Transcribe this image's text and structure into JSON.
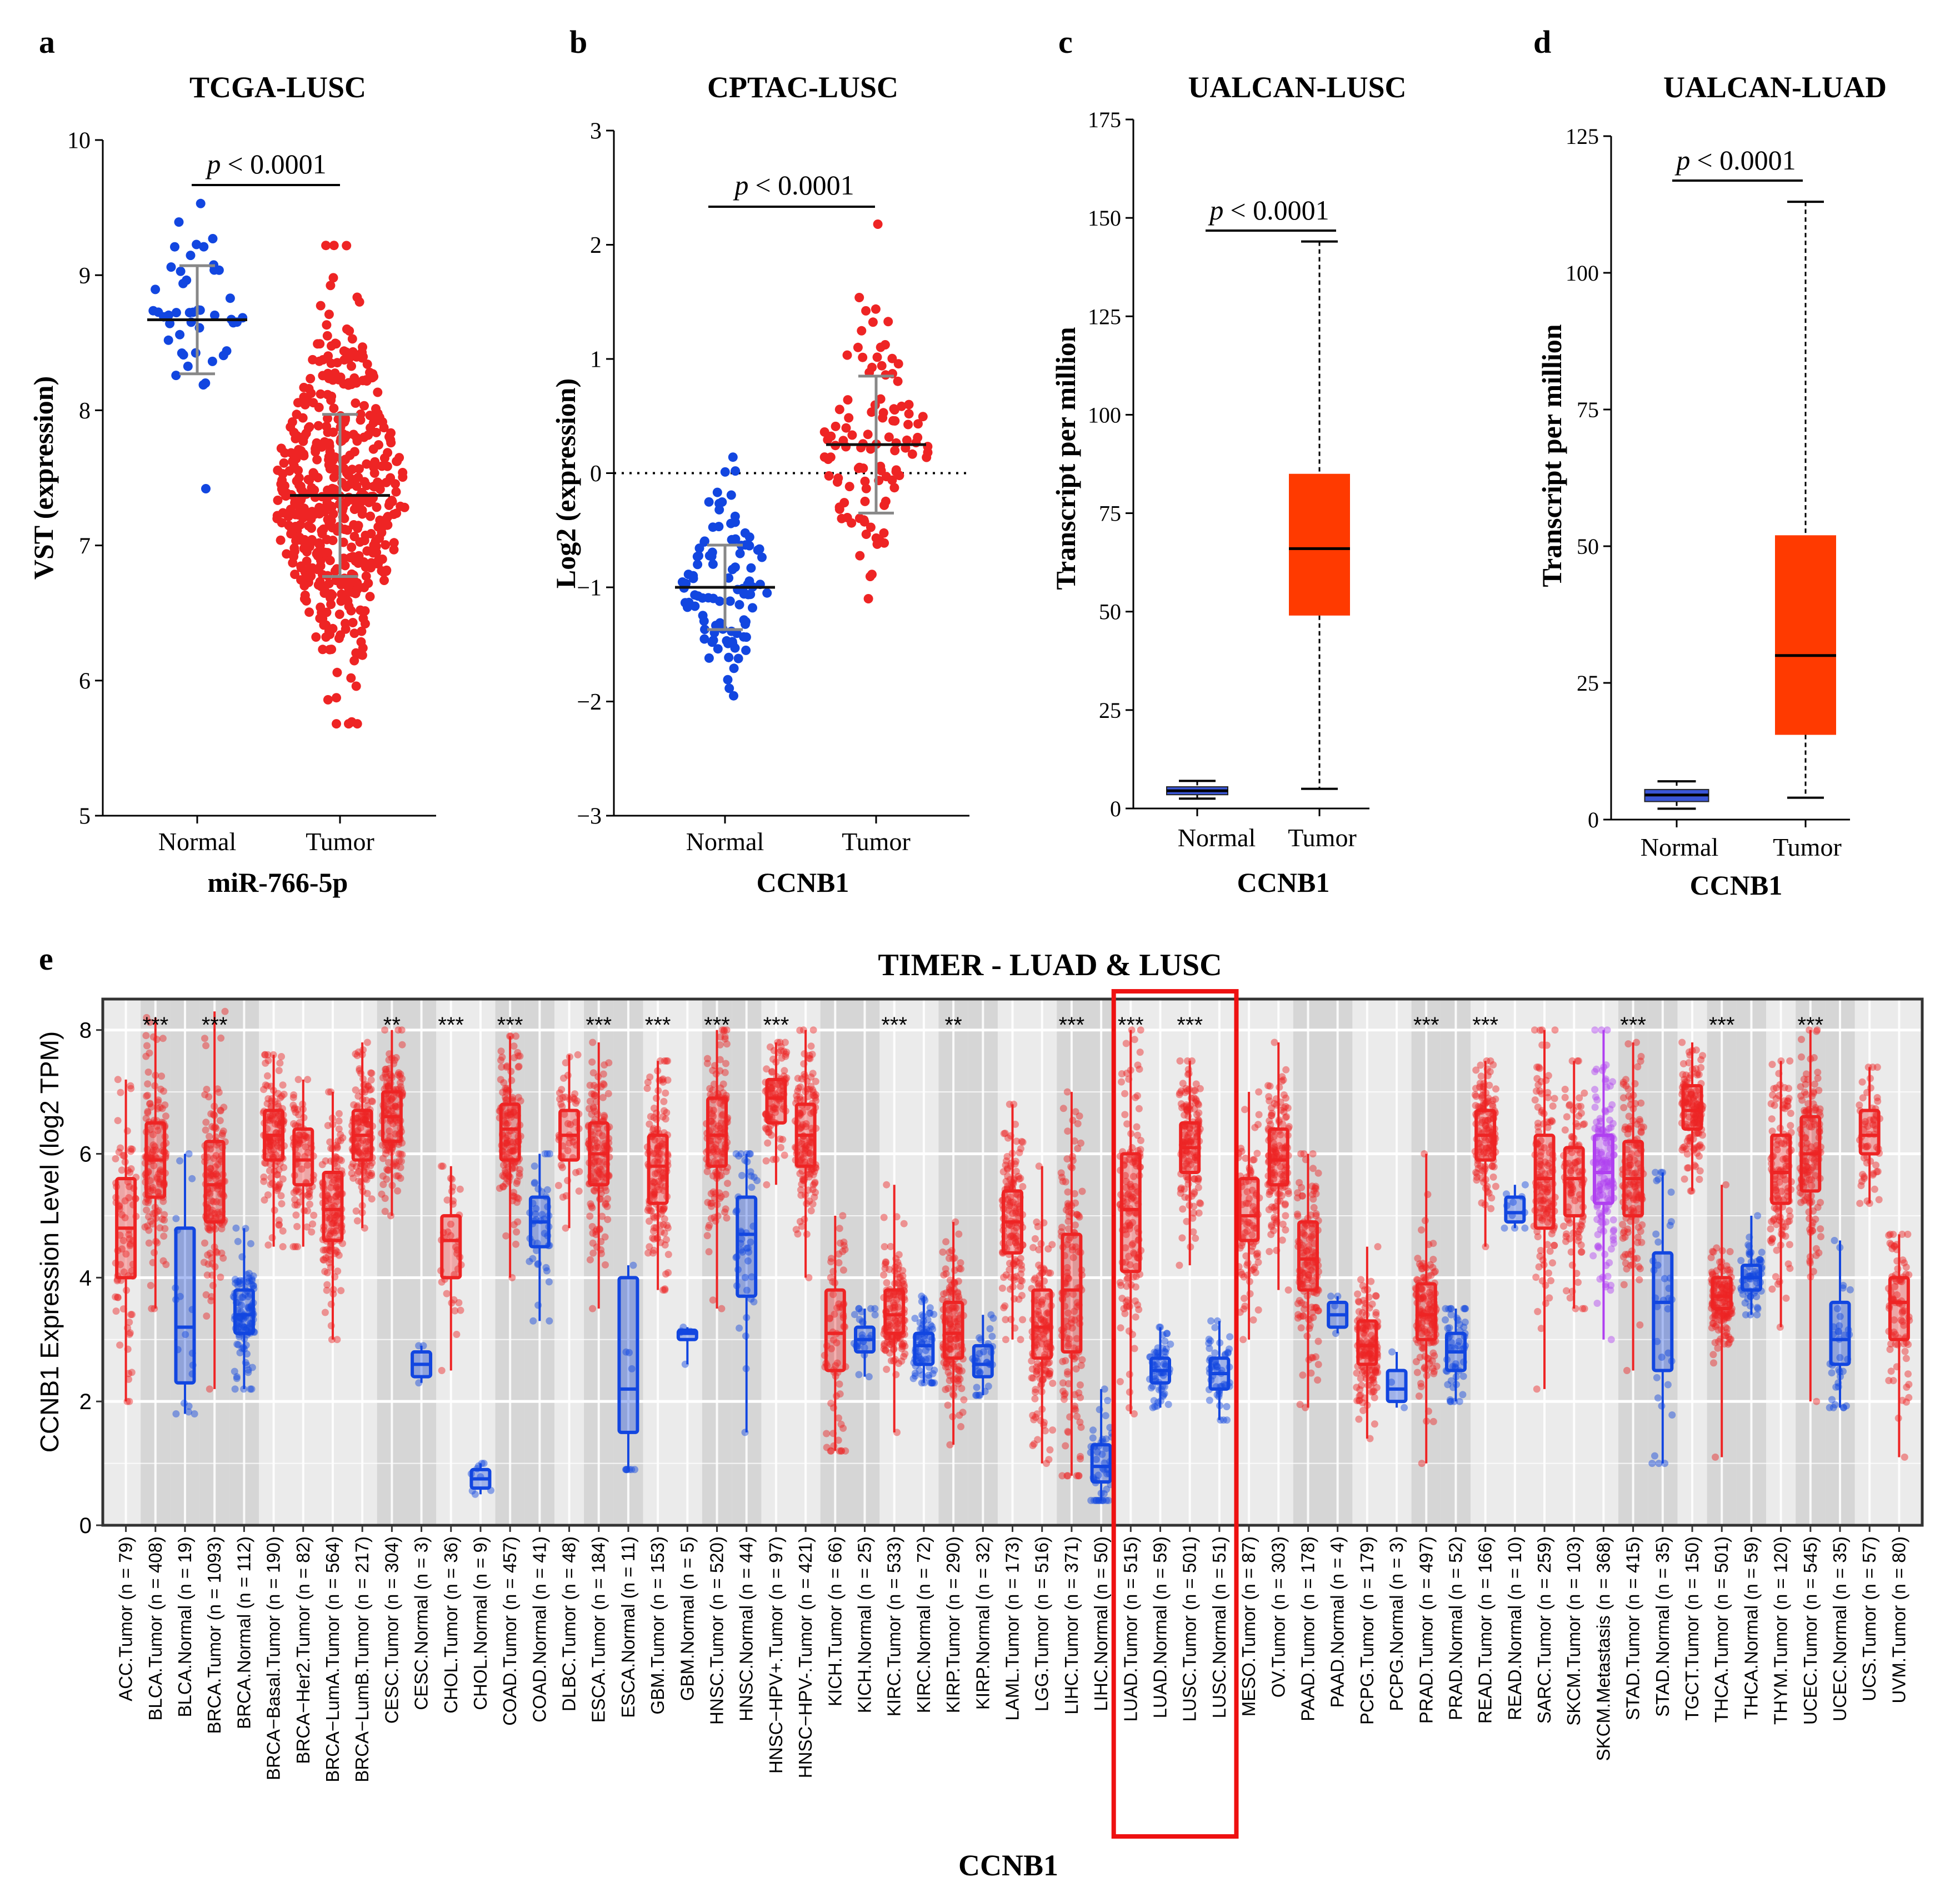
{
  "colors": {
    "normal": "#1246e0",
    "tumor": "#ee2424",
    "metastasis": "#b040f0",
    "ualcan_normal": "#3a56d8",
    "ualcan_tumor": "#ff3a00",
    "median_line": "#111111",
    "error_bar": "#888888",
    "timer_band": "#d6d6d6",
    "highlight_box": "#ee1111"
  },
  "chart_data": [
    {
      "panel": "a",
      "type": "scatter",
      "title": "TCGA-LUSC",
      "xlabel": "miR-766-5p",
      "ylabel": "VST (expression)",
      "ylim": [
        5,
        10
      ],
      "yticks": [
        5,
        6,
        7,
        8,
        9,
        10
      ],
      "ytick_labels": [
        "5",
        "6",
        "7",
        "8",
        "9",
        "10"
      ],
      "categories": [
        "Normal",
        "Tumor"
      ],
      "groups": [
        {
          "name": "Normal",
          "n": 46,
          "mean": 8.67,
          "sd": 0.4,
          "min": 7.42,
          "max": 9.53
        },
        {
          "name": "Tumor",
          "n": 520,
          "mean": 7.37,
          "sd": 0.6,
          "min": 5.68,
          "max": 9.22
        }
      ],
      "pvalue_text": "< 0.0001",
      "pvalue_prefix": "p"
    },
    {
      "panel": "b",
      "type": "scatter",
      "title": "CPTAC-LUSC",
      "xlabel": "CCNB1",
      "ylabel": "Log2 (expression)",
      "ylim": [
        -3,
        3
      ],
      "yticks": [
        -3,
        -2,
        -1,
        0,
        1,
        2,
        3
      ],
      "ytick_labels": [
        "−3",
        "−2",
        "−1",
        "0",
        "1",
        "2",
        "3"
      ],
      "reference_line": 0,
      "categories": [
        "Normal",
        "Tumor"
      ],
      "groups": [
        {
          "name": "Normal",
          "n": 99,
          "mean": -1.0,
          "sd": 0.37,
          "min": -1.95,
          "max": 0.14
        },
        {
          "name": "Tumor",
          "n": 108,
          "mean": 0.25,
          "sd": 0.6,
          "min": -1.1,
          "max": 2.18
        }
      ],
      "pvalue_text": "< 0.0001",
      "pvalue_prefix": "p"
    },
    {
      "panel": "c",
      "type": "box",
      "title": "UALCAN-LUSC",
      "xlabel": "CCNB1",
      "ylabel": "Transcript per million",
      "ylim": [
        0,
        175
      ],
      "yticks": [
        0,
        25,
        50,
        75,
        100,
        125,
        150,
        175
      ],
      "ytick_labels": [
        "0",
        "25",
        "50",
        "75",
        "100",
        "125",
        "150",
        "175"
      ],
      "categories": [
        "Normal",
        "Tumor"
      ],
      "boxes": [
        {
          "name": "Normal",
          "min": 2.5,
          "q1": 3.5,
          "median": 4.5,
          "q3": 5.5,
          "max": 7
        },
        {
          "name": "Tumor",
          "min": 5,
          "q1": 49,
          "median": 66,
          "q3": 85,
          "max": 144
        }
      ],
      "pvalue_text": "< 0.0001",
      "pvalue_prefix": "p"
    },
    {
      "panel": "d",
      "type": "box",
      "title": "UALCAN-LUAD",
      "xlabel": "CCNB1",
      "ylabel": "Transcript per million",
      "ylim": [
        0,
        125
      ],
      "yticks": [
        0,
        25,
        50,
        75,
        100,
        125
      ],
      "ytick_labels": [
        "0",
        "25",
        "50",
        "75",
        "100",
        "125"
      ],
      "categories": [
        "Normal",
        "Tumor"
      ],
      "boxes": [
        {
          "name": "Normal",
          "min": 2,
          "q1": 3.3,
          "median": 4.5,
          "q3": 5.5,
          "max": 7
        },
        {
          "name": "Tumor",
          "min": 4,
          "q1": 15.5,
          "median": 30,
          "q3": 52,
          "max": 113
        }
      ],
      "pvalue_text": "< 0.0001",
      "pvalue_prefix": "p"
    },
    {
      "panel": "e",
      "type": "box",
      "title": "TIMER - LUAD & LUSC",
      "xlabel": "CCNB1",
      "ylabel": "CCNB1 Expression Level (log2 TPM)",
      "ylim": [
        0,
        8.5
      ],
      "yticks": [
        0,
        2,
        4,
        6,
        8
      ],
      "ytick_labels": [
        "0",
        "2",
        "4",
        "6",
        "8"
      ],
      "highlight": [
        "LUAD.Tumor (n = 515)",
        "LUAD.Normal (n = 59)",
        "LUSC.Tumor (n = 501)",
        "LUSC.Normal (n = 51)"
      ],
      "categories": [
        {
          "label": "ACC.Tumor (n = 79)",
          "kind": "tumor",
          "q1": 4.0,
          "median": 4.8,
          "q3": 5.6,
          "min": 2.0,
          "max": 7.2,
          "band": false,
          "sig": ""
        },
        {
          "label": "BLCA.Tumor (n = 408)",
          "kind": "tumor",
          "q1": 5.3,
          "median": 5.9,
          "q3": 6.5,
          "min": 3.5,
          "max": 8.2,
          "band": true,
          "sig": "***"
        },
        {
          "label": "BLCA.Normal (n = 19)",
          "kind": "normal",
          "q1": 2.3,
          "median": 3.2,
          "q3": 4.8,
          "min": 1.8,
          "max": 6.0,
          "band": true,
          "sig": ""
        },
        {
          "label": "BRCA.Tumor (n = 1093)",
          "kind": "tumor",
          "q1": 4.9,
          "median": 5.5,
          "q3": 6.2,
          "min": 2.2,
          "max": 8.3,
          "band": true,
          "sig": "***"
        },
        {
          "label": "BRCA.Normal (n = 112)",
          "kind": "normal",
          "q1": 3.1,
          "median": 3.4,
          "q3": 3.8,
          "min": 2.2,
          "max": 4.8,
          "band": true,
          "sig": ""
        },
        {
          "label": "BRCA−Basal.Tumor (n = 190)",
          "kind": "tumor",
          "q1": 5.9,
          "median": 6.3,
          "q3": 6.7,
          "min": 4.5,
          "max": 7.6,
          "band": false,
          "sig": ""
        },
        {
          "label": "BRCA−Her2.Tumor (n = 82)",
          "kind": "tumor",
          "q1": 5.5,
          "median": 5.9,
          "q3": 6.4,
          "min": 4.5,
          "max": 7.2,
          "band": false,
          "sig": ""
        },
        {
          "label": "BRCA−LumA.Tumor (n = 564)",
          "kind": "tumor",
          "q1": 4.6,
          "median": 5.1,
          "q3": 5.7,
          "min": 3.0,
          "max": 7.0,
          "band": false,
          "sig": ""
        },
        {
          "label": "BRCA−LumB.Tumor (n = 217)",
          "kind": "tumor",
          "q1": 5.9,
          "median": 6.3,
          "q3": 6.7,
          "min": 4.8,
          "max": 7.8,
          "band": false,
          "sig": ""
        },
        {
          "label": "CESC.Tumor (n = 304)",
          "kind": "tumor",
          "q1": 6.2,
          "median": 6.6,
          "q3": 7.0,
          "min": 5.0,
          "max": 8.0,
          "band": true,
          "sig": "**"
        },
        {
          "label": "CESC.Normal (n = 3)",
          "kind": "normal",
          "q1": 2.4,
          "median": 2.6,
          "q3": 2.8,
          "min": 2.3,
          "max": 2.9,
          "band": true,
          "sig": ""
        },
        {
          "label": "CHOL.Tumor (n = 36)",
          "kind": "tumor",
          "q1": 4.0,
          "median": 4.6,
          "q3": 5.0,
          "min": 2.5,
          "max": 5.8,
          "band": false,
          "sig": "***"
        },
        {
          "label": "CHOL.Normal (n = 9)",
          "kind": "normal",
          "q1": 0.6,
          "median": 0.75,
          "q3": 0.9,
          "min": 0.5,
          "max": 1.0,
          "band": false,
          "sig": ""
        },
        {
          "label": "COAD.Tumor (n = 457)",
          "kind": "tumor",
          "q1": 5.9,
          "median": 6.4,
          "q3": 6.8,
          "min": 4.0,
          "max": 7.9,
          "band": true,
          "sig": "***"
        },
        {
          "label": "COAD.Normal (n = 41)",
          "kind": "normal",
          "q1": 4.5,
          "median": 4.9,
          "q3": 5.3,
          "min": 3.3,
          "max": 6.0,
          "band": true,
          "sig": ""
        },
        {
          "label": "DLBC.Tumor (n = 48)",
          "kind": "tumor",
          "q1": 5.9,
          "median": 6.3,
          "q3": 6.7,
          "min": 4.8,
          "max": 7.6,
          "band": false,
          "sig": ""
        },
        {
          "label": "ESCA.Tumor (n = 184)",
          "kind": "tumor",
          "q1": 5.5,
          "median": 6.0,
          "q3": 6.5,
          "min": 3.5,
          "max": 7.8,
          "band": true,
          "sig": "***"
        },
        {
          "label": "ESCA.Normal (n = 11)",
          "kind": "normal",
          "q1": 1.5,
          "median": 2.2,
          "q3": 4.0,
          "min": 0.9,
          "max": 4.2,
          "band": true,
          "sig": ""
        },
        {
          "label": "GBM.Tumor (n = 153)",
          "kind": "tumor",
          "q1": 5.2,
          "median": 5.8,
          "q3": 6.3,
          "min": 3.8,
          "max": 7.5,
          "band": false,
          "sig": "***"
        },
        {
          "label": "GBM.Normal (n = 5)",
          "kind": "normal",
          "q1": 3.0,
          "median": 3.1,
          "q3": 3.15,
          "min": 2.6,
          "max": 3.2,
          "band": false,
          "sig": ""
        },
        {
          "label": "HNSC.Tumor (n = 520)",
          "kind": "tumor",
          "q1": 5.8,
          "median": 6.3,
          "q3": 6.9,
          "min": 3.5,
          "max": 8.0,
          "band": true,
          "sig": "***"
        },
        {
          "label": "HNSC.Normal (n = 44)",
          "kind": "normal",
          "q1": 3.7,
          "median": 4.7,
          "q3": 5.3,
          "min": 1.5,
          "max": 6.0,
          "band": true,
          "sig": ""
        },
        {
          "label": "HNSC−HPV+.Tumor (n = 97)",
          "kind": "tumor",
          "q1": 6.5,
          "median": 6.9,
          "q3": 7.2,
          "min": 5.5,
          "max": 7.8,
          "band": false,
          "sig": "***"
        },
        {
          "label": "HNSC−HPV-.Tumor (n = 421)",
          "kind": "tumor",
          "q1": 5.8,
          "median": 6.3,
          "q3": 6.8,
          "min": 4.0,
          "max": 8.0,
          "band": false,
          "sig": ""
        },
        {
          "label": "KICH.Tumor (n = 66)",
          "kind": "tumor",
          "q1": 2.5,
          "median": 3.1,
          "q3": 3.8,
          "min": 1.2,
          "max": 5.0,
          "band": true,
          "sig": ""
        },
        {
          "label": "KICH.Normal (n = 25)",
          "kind": "normal",
          "q1": 2.8,
          "median": 3.0,
          "q3": 3.2,
          "min": 2.4,
          "max": 3.5,
          "band": true,
          "sig": ""
        },
        {
          "label": "KIRC.Tumor (n = 533)",
          "kind": "tumor",
          "q1": 3.1,
          "median": 3.4,
          "q3": 3.8,
          "min": 1.5,
          "max": 5.5,
          "band": false,
          "sig": "***"
        },
        {
          "label": "KIRC.Normal (n = 72)",
          "kind": "normal",
          "q1": 2.6,
          "median": 2.9,
          "q3": 3.1,
          "min": 2.3,
          "max": 3.7,
          "band": false,
          "sig": ""
        },
        {
          "label": "KIRP.Tumor (n = 290)",
          "kind": "tumor",
          "q1": 2.7,
          "median": 3.1,
          "q3": 3.6,
          "min": 1.3,
          "max": 4.9,
          "band": true,
          "sig": "**"
        },
        {
          "label": "KIRP.Normal (n = 32)",
          "kind": "normal",
          "q1": 2.4,
          "median": 2.6,
          "q3": 2.9,
          "min": 2.1,
          "max": 3.4,
          "band": true,
          "sig": ""
        },
        {
          "label": "LAML.Tumor (n = 173)",
          "kind": "tumor",
          "q1": 4.4,
          "median": 4.9,
          "q3": 5.4,
          "min": 3.0,
          "max": 6.8,
          "band": false,
          "sig": ""
        },
        {
          "label": "LGG.Tumor (n = 516)",
          "kind": "tumor",
          "q1": 2.7,
          "median": 3.2,
          "q3": 3.8,
          "min": 1.0,
          "max": 5.8,
          "band": false,
          "sig": ""
        },
        {
          "label": "LIHC.Tumor (n = 371)",
          "kind": "tumor",
          "q1": 2.8,
          "median": 3.8,
          "q3": 4.7,
          "min": 0.8,
          "max": 7.0,
          "band": true,
          "sig": "***"
        },
        {
          "label": "LIHC.Normal (n = 50)",
          "kind": "normal",
          "q1": 0.7,
          "median": 0.95,
          "q3": 1.3,
          "min": 0.4,
          "max": 2.2,
          "band": true,
          "sig": ""
        },
        {
          "label": "LUAD.Tumor (n = 515)",
          "kind": "tumor",
          "q1": 4.1,
          "median": 5.1,
          "q3": 6.0,
          "min": 1.8,
          "max": 8.0,
          "band": false,
          "sig": "***"
        },
        {
          "label": "LUAD.Normal (n = 59)",
          "kind": "normal",
          "q1": 2.3,
          "median": 2.5,
          "q3": 2.7,
          "min": 1.9,
          "max": 3.2,
          "band": false,
          "sig": ""
        },
        {
          "label": "LUSC.Tumor (n = 501)",
          "kind": "tumor",
          "q1": 5.7,
          "median": 6.1,
          "q3": 6.5,
          "min": 4.2,
          "max": 7.5,
          "band": false,
          "sig": "***"
        },
        {
          "label": "LUSC.Normal (n = 51)",
          "kind": "normal",
          "q1": 2.2,
          "median": 2.45,
          "q3": 2.7,
          "min": 1.7,
          "max": 3.3,
          "band": false,
          "sig": ""
        },
        {
          "label": "MESO.Tumor (n = 87)",
          "kind": "tumor",
          "q1": 4.6,
          "median": 5.0,
          "q3": 5.6,
          "min": 3.0,
          "max": 7.0,
          "band": false,
          "sig": ""
        },
        {
          "label": "OV.Tumor (n = 303)",
          "kind": "tumor",
          "q1": 5.5,
          "median": 5.9,
          "q3": 6.4,
          "min": 3.8,
          "max": 7.8,
          "band": false,
          "sig": ""
        },
        {
          "label": "PAAD.Tumor (n = 178)",
          "kind": "tumor",
          "q1": 3.8,
          "median": 4.3,
          "q3": 4.9,
          "min": 1.9,
          "max": 6.0,
          "band": true,
          "sig": ""
        },
        {
          "label": "PAAD.Normal (n = 4)",
          "kind": "normal",
          "q1": 3.2,
          "median": 3.4,
          "q3": 3.6,
          "min": 3.1,
          "max": 3.7,
          "band": true,
          "sig": ""
        },
        {
          "label": "PCPG.Tumor (n = 179)",
          "kind": "tumor",
          "q1": 2.6,
          "median": 2.9,
          "q3": 3.3,
          "min": 1.4,
          "max": 4.5,
          "band": false,
          "sig": ""
        },
        {
          "label": "PCPG.Normal (n = 3)",
          "kind": "normal",
          "q1": 2.0,
          "median": 2.2,
          "q3": 2.5,
          "min": 1.9,
          "max": 2.8,
          "band": false,
          "sig": ""
        },
        {
          "label": "PRAD.Tumor (n = 497)",
          "kind": "tumor",
          "q1": 3.0,
          "median": 3.4,
          "q3": 3.9,
          "min": 1.0,
          "max": 6.0,
          "band": true,
          "sig": "***"
        },
        {
          "label": "PRAD.Normal (n = 52)",
          "kind": "normal",
          "q1": 2.5,
          "median": 2.8,
          "q3": 3.1,
          "min": 2.0,
          "max": 3.5,
          "band": true,
          "sig": ""
        },
        {
          "label": "READ.Tumor (n = 166)",
          "kind": "tumor",
          "q1": 5.9,
          "median": 6.3,
          "q3": 6.7,
          "min": 4.5,
          "max": 7.5,
          "band": false,
          "sig": "***"
        },
        {
          "label": "READ.Normal (n = 10)",
          "kind": "normal",
          "q1": 4.9,
          "median": 5.05,
          "q3": 5.3,
          "min": 4.8,
          "max": 5.5,
          "band": false,
          "sig": ""
        },
        {
          "label": "SARC.Tumor (n = 259)",
          "kind": "tumor",
          "q1": 4.8,
          "median": 5.6,
          "q3": 6.3,
          "min": 2.2,
          "max": 8.0,
          "band": false,
          "sig": ""
        },
        {
          "label": "SKCM.Tumor (n = 103)",
          "kind": "tumor",
          "q1": 5.0,
          "median": 5.6,
          "q3": 6.1,
          "min": 3.5,
          "max": 7.5,
          "band": false,
          "sig": ""
        },
        {
          "label": "SKCM.Metastasis (n = 368)",
          "kind": "metastasis",
          "q1": 5.2,
          "median": 5.7,
          "q3": 6.3,
          "min": 3.0,
          "max": 8.0,
          "band": false,
          "sig": ""
        },
        {
          "label": "STAD.Tumor (n = 415)",
          "kind": "tumor",
          "q1": 5.0,
          "median": 5.6,
          "q3": 6.2,
          "min": 2.5,
          "max": 7.8,
          "band": true,
          "sig": "***"
        },
        {
          "label": "STAD.Normal (n = 35)",
          "kind": "normal",
          "q1": 2.5,
          "median": 3.6,
          "q3": 4.4,
          "min": 1.0,
          "max": 5.7,
          "band": true,
          "sig": ""
        },
        {
          "label": "TGCT.Tumor (n = 150)",
          "kind": "tumor",
          "q1": 6.4,
          "median": 6.7,
          "q3": 7.1,
          "min": 5.4,
          "max": 7.8,
          "band": false,
          "sig": ""
        },
        {
          "label": "THCA.Tumor (n = 501)",
          "kind": "tumor",
          "q1": 3.5,
          "median": 3.7,
          "q3": 4.0,
          "min": 1.1,
          "max": 5.5,
          "band": true,
          "sig": "***"
        },
        {
          "label": "THCA.Normal (n = 59)",
          "kind": "normal",
          "q1": 3.8,
          "median": 4.0,
          "q3": 4.2,
          "min": 3.4,
          "max": 5.0,
          "band": true,
          "sig": ""
        },
        {
          "label": "THYM.Tumor (n = 120)",
          "kind": "tumor",
          "q1": 5.2,
          "median": 5.7,
          "q3": 6.3,
          "min": 3.2,
          "max": 7.5,
          "band": false,
          "sig": ""
        },
        {
          "label": "UCEC.Tumor (n = 545)",
          "kind": "tumor",
          "q1": 5.4,
          "median": 6.0,
          "q3": 6.6,
          "min": 2.0,
          "max": 8.0,
          "band": true,
          "sig": "***"
        },
        {
          "label": "UCEC.Normal (n = 35)",
          "kind": "normal",
          "q1": 2.6,
          "median": 3.0,
          "q3": 3.6,
          "min": 1.9,
          "max": 4.6,
          "band": true,
          "sig": ""
        },
        {
          "label": "UCS.Tumor (n = 57)",
          "kind": "tumor",
          "q1": 6.0,
          "median": 6.3,
          "q3": 6.7,
          "min": 5.2,
          "max": 7.4,
          "band": false,
          "sig": ""
        },
        {
          "label": "UVM.Tumor (n = 80)",
          "kind": "tumor",
          "q1": 3.0,
          "median": 3.6,
          "q3": 4.0,
          "min": 1.1,
          "max": 4.7,
          "band": false,
          "sig": ""
        }
      ]
    }
  ],
  "panel_letters": {
    "a": "a",
    "b": "b",
    "c": "c",
    "d": "d",
    "e": "e"
  }
}
